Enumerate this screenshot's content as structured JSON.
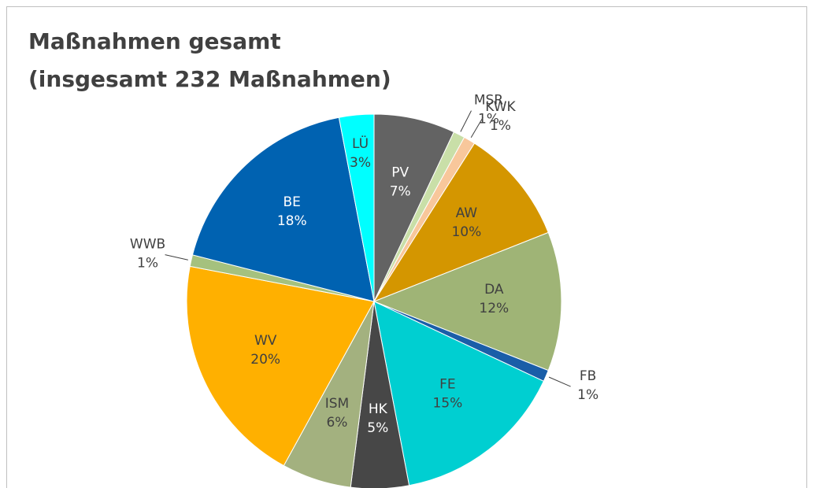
{
  "chart_data": {
    "type": "pie",
    "title": [
      "Maßnahmen gesamt",
      "(insgesamt 232 Maßnahmen)"
    ],
    "categories": [
      "PV",
      "MSR",
      "KWK",
      "AW",
      "DA",
      "FB",
      "FE",
      "HK",
      "ISM",
      "WV",
      "WWB",
      "BE",
      "LÜ"
    ],
    "values": [
      7,
      1,
      1,
      10,
      12,
      1,
      15,
      5,
      6,
      20,
      1,
      18,
      3
    ],
    "value_labels": [
      "7%",
      "1%",
      "1%",
      "10%",
      "12%",
      "1%",
      "15%",
      "5%",
      "6%",
      "20%",
      "1%",
      "18%",
      "3%"
    ],
    "colors": [
      "#636363",
      "#c9dfa8",
      "#f8c79b",
      "#d49600",
      "#9fb476",
      "#1a5ea8",
      "#00cfd1",
      "#474747",
      "#a3b17f",
      "#ffb000",
      "#a5c17e",
      "#0062b1",
      "#00ffff"
    ]
  }
}
